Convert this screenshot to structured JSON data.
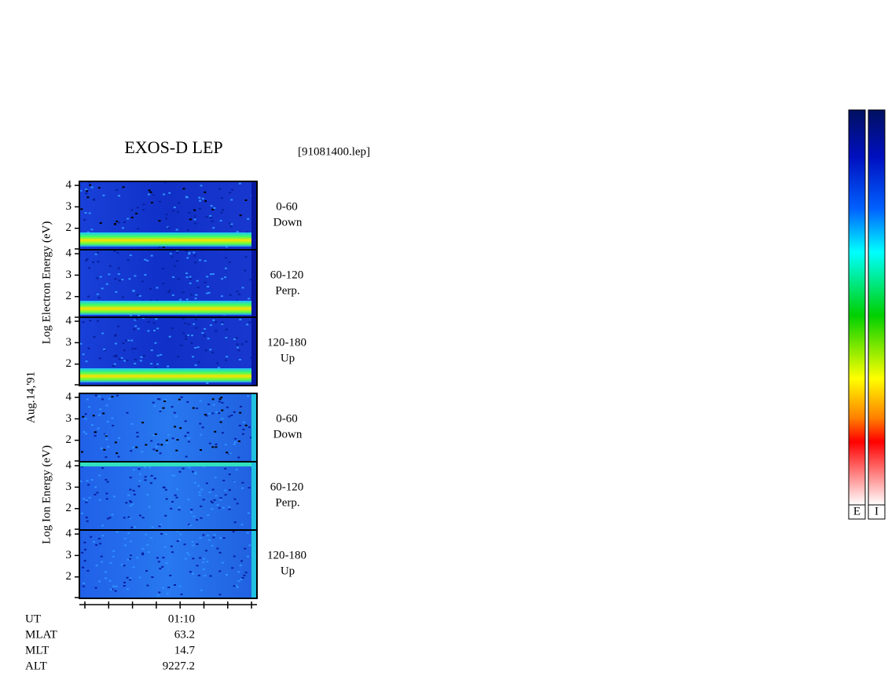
{
  "title": "EXOS-D LEP",
  "file": "[91081400.lep]",
  "y_labels": {
    "electron": "Log  Electron  Energy (eV)",
    "ion": "Log  Ion  Energy (eV)"
  },
  "date": "Aug.14,'91",
  "panels": [
    {
      "species": "electron",
      "angle": "0-60",
      "direction": "Down",
      "yticks": [
        4,
        3,
        2
      ]
    },
    {
      "species": "electron",
      "angle": "60-120",
      "direction": "Perp.",
      "yticks": [
        4,
        3,
        2
      ]
    },
    {
      "species": "electron",
      "angle": "120-180",
      "direction": "Up",
      "yticks": [
        4,
        3,
        2
      ]
    },
    {
      "species": "ion",
      "angle": "0-60",
      "direction": "Down",
      "yticks": [
        4,
        3,
        2
      ]
    },
    {
      "species": "ion",
      "angle": "60-120",
      "direction": "Perp.",
      "yticks": [
        4,
        3,
        2
      ]
    },
    {
      "species": "ion",
      "angle": "120-180",
      "direction": "Up",
      "yticks": [
        4,
        3,
        2
      ]
    }
  ],
  "rows": [
    {
      "label": "UT",
      "value": "01:10"
    },
    {
      "label": "MLAT",
      "value": 63.2
    },
    {
      "label": "MLT",
      "value": 14.7
    },
    {
      "label": "ALT",
      "value": 9227.2
    }
  ],
  "colorbars": [
    "E",
    "I"
  ]
}
